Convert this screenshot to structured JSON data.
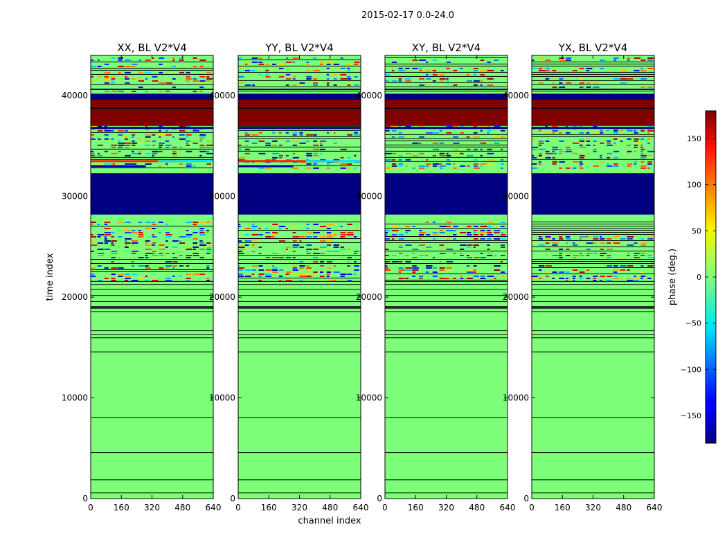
{
  "figure": {
    "suptitle": "2015-02-17 0.0-24.0"
  },
  "chart_data": {
    "type": "heatmap",
    "xlabel": "channel index",
    "ylabel": "time index",
    "xlim": [
      0,
      640
    ],
    "ylim": [
      0,
      44000
    ],
    "xticks": [
      0,
      160,
      320,
      480,
      640
    ],
    "yticks": [
      0,
      10000,
      20000,
      30000,
      40000
    ],
    "panels": [
      {
        "title": "XX, BL V2*V4",
        "id": "xx"
      },
      {
        "title": "YY, BL V2*V4",
        "id": "yy"
      },
      {
        "title": "XY, BL V2*V4",
        "id": "xy"
      },
      {
        "title": "YX, BL V2*V4",
        "id": "yx"
      }
    ],
    "colorbar": {
      "label": "phase (deg.)",
      "range": [
        -180,
        180
      ],
      "ticks": [
        150,
        100,
        50,
        0,
        -50,
        -100,
        -150
      ],
      "colormap": "jet"
    },
    "approx_bands": {
      "solid_high_phase_time_range": [
        37000,
        40000
      ],
      "solid_low_phase_time_ranges": [
        [
          28200,
          32300
        ],
        [
          39600,
          40200
        ]
      ],
      "noisy_time_ranges": [
        [
          21700,
          27500
        ],
        [
          32800,
          37000
        ],
        [
          40500,
          43800
        ]
      ],
      "uniform_near_zero_time_range": [
        0,
        21700
      ]
    }
  },
  "colors": {
    "background_phase": "#7dff7a",
    "high_phase": "#800000",
    "low_phase": "#000080",
    "separator": "#000000"
  }
}
